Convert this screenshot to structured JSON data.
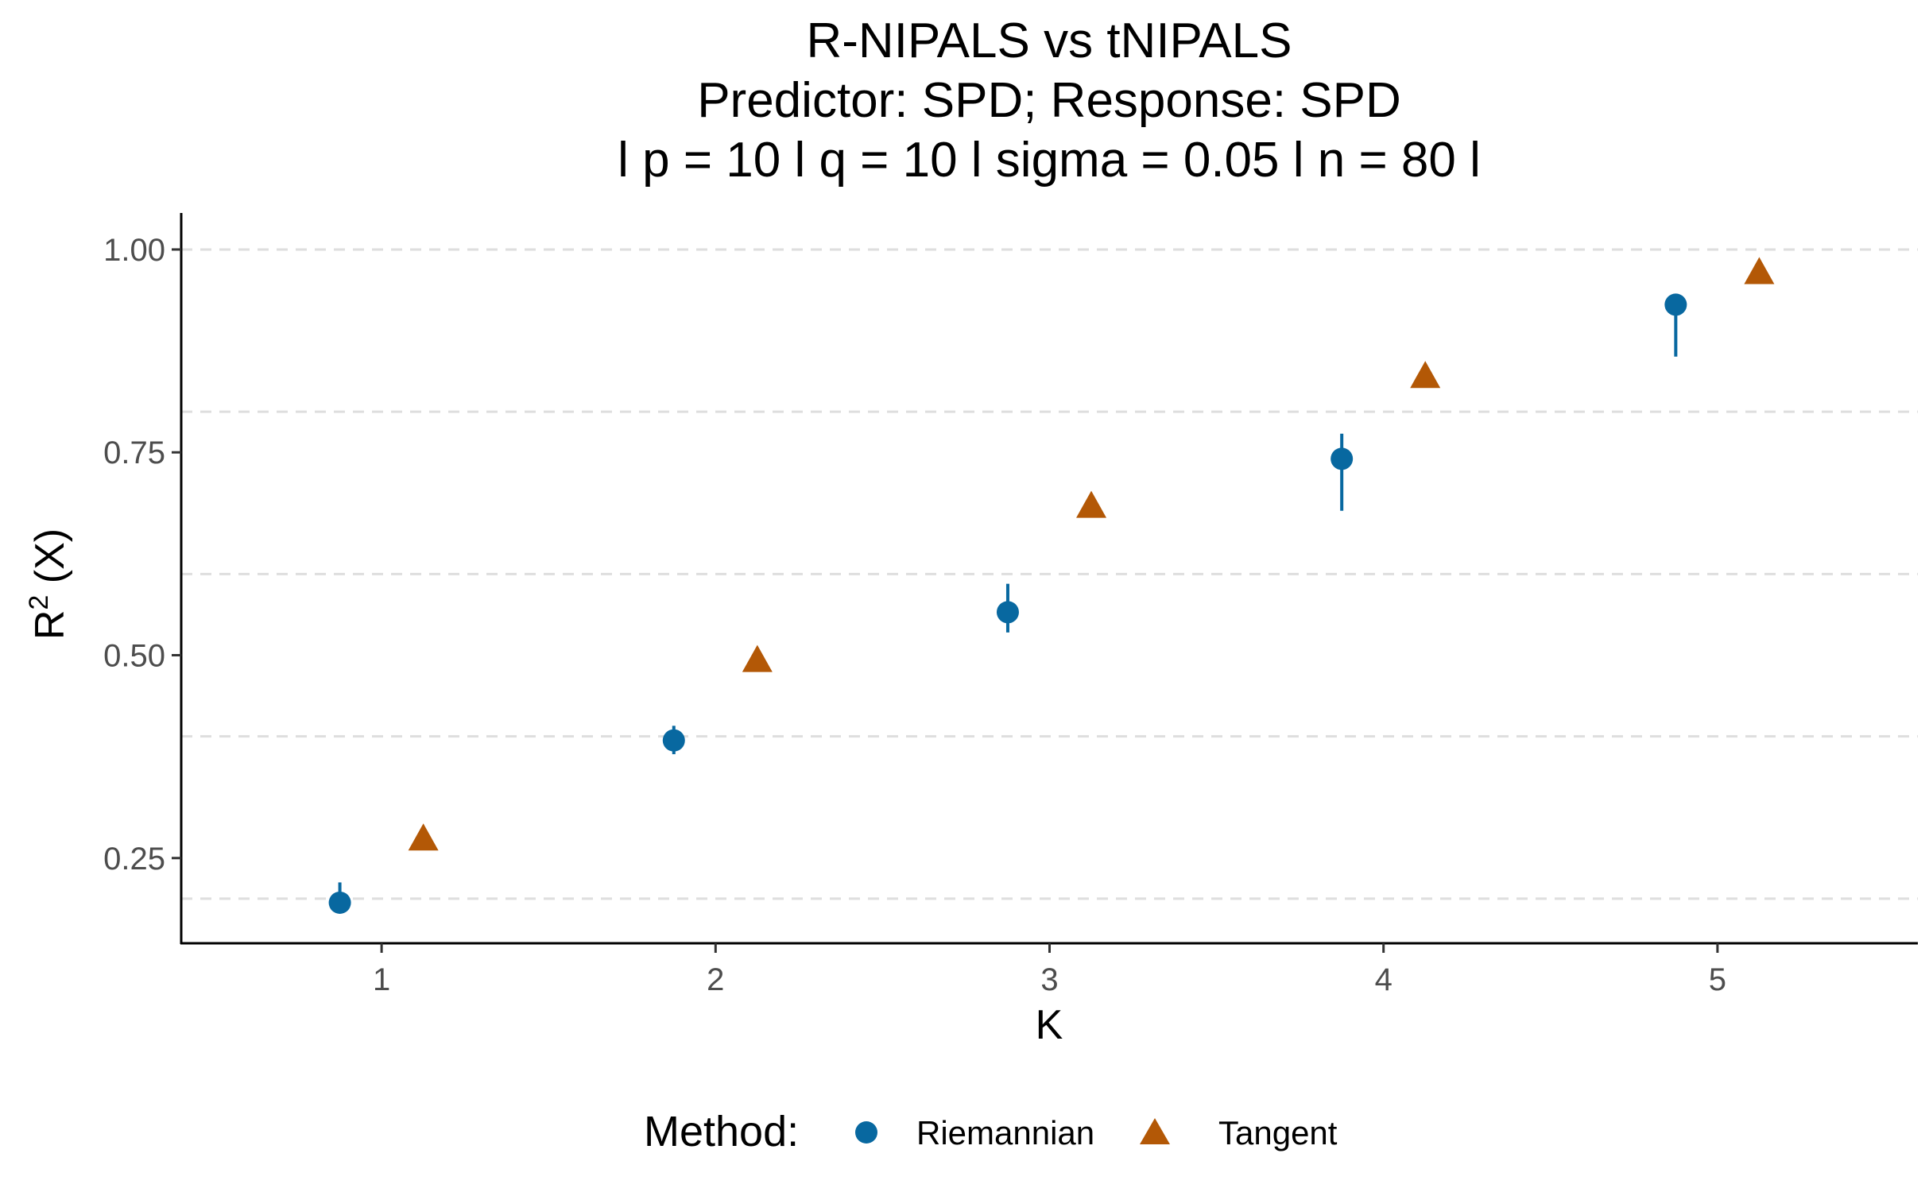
{
  "chart_data": {
    "type": "scatter",
    "title_lines": [
      "R-NIPALS vs tNIPALS",
      "Predictor: SPD; Response: SPD",
      "l p = 10 l q = 10 l sigma = 0.05 l n = 80 l"
    ],
    "xlabel": "K",
    "ylabel": "R",
    "ylabel_superscript": "2",
    "ylabel_suffix": " (X)",
    "x_ticks": [
      "1",
      "2",
      "3",
      "4",
      "5"
    ],
    "y_ticks": [
      {
        "value": 0.25,
        "label": "0.25"
      },
      {
        "value": 0.5,
        "label": "0.50"
      },
      {
        "value": 0.75,
        "label": "0.75"
      },
      {
        "value": 1.0,
        "label": "1.00"
      }
    ],
    "minor_grid_y": [
      0.2,
      0.4,
      0.6,
      0.8,
      1.0
    ],
    "xlim": [
      0.4,
      5.6
    ],
    "ylim": [
      0.145,
      1.045
    ],
    "legend": {
      "title": "Method:",
      "position": "bottom"
    },
    "series": [
      {
        "name": "Riemannian",
        "marker": "circle",
        "color": "#0868a0",
        "x": [
          1,
          2,
          3,
          4,
          5
        ],
        "dodge": -0.125,
        "values": [
          0.195,
          0.395,
          0.553,
          0.742,
          0.932
        ],
        "lower": [
          0.19,
          0.378,
          0.528,
          0.678,
          0.868
        ],
        "upper": [
          0.22,
          0.413,
          0.588,
          0.773,
          0.935
        ]
      },
      {
        "name": "Tangent",
        "marker": "triangle",
        "color": "#b35806",
        "x": [
          1,
          2,
          3,
          4,
          5
        ],
        "dodge": 0.125,
        "values": [
          0.272,
          0.492,
          0.682,
          0.842,
          0.97
        ]
      }
    ]
  }
}
